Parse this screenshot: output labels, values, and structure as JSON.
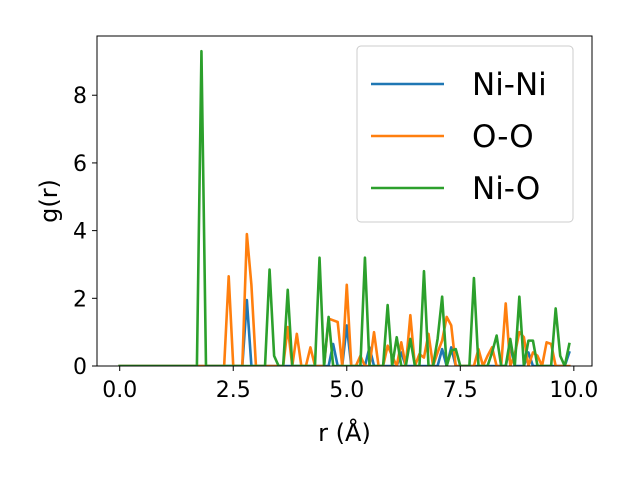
{
  "chart_data": {
    "type": "line",
    "title": "",
    "xlabel": "r (Å)",
    "ylabel": "g(r)",
    "xlim": [
      -0.5,
      10.4
    ],
    "ylim": [
      0,
      9.75
    ],
    "xticks": [
      0.0,
      2.5,
      5.0,
      7.5,
      10.0
    ],
    "xtick_labels": [
      "0.0",
      "2.5",
      "5.0",
      "7.5",
      "10.0"
    ],
    "yticks": [
      0,
      2,
      4,
      6,
      8
    ],
    "ytick_labels": [
      "0",
      "2",
      "4",
      "6",
      "8"
    ],
    "grid": false,
    "legend_position": "top-right",
    "series": [
      {
        "name": "Ni-Ni",
        "color": "#1f77b4",
        "x": [
          0.0,
          2.7,
          2.8,
          2.9,
          4.4,
          4.5,
          4.6,
          4.7,
          4.8,
          4.9,
          5.0,
          5.1,
          5.4,
          5.5,
          5.6,
          6.1,
          6.2,
          6.3,
          7.0,
          7.1,
          7.2,
          7.3,
          7.4,
          7.5,
          8.5,
          8.6,
          8.7,
          8.9,
          9.0,
          9.1,
          9.8,
          9.9
        ],
        "y": [
          0,
          0,
          1.95,
          0,
          0,
          0,
          0,
          0.65,
          0,
          0,
          1.2,
          0,
          0,
          0.55,
          0,
          0,
          0.4,
          0,
          0,
          0.5,
          0,
          0.55,
          0,
          0,
          0,
          0.6,
          0,
          0,
          0.4,
          0,
          0,
          0.4
        ]
      },
      {
        "name": "O-O",
        "color": "#ff7f0e",
        "x": [
          0.0,
          2.3,
          2.4,
          2.5,
          2.7,
          2.8,
          2.9,
          3.0,
          3.5,
          3.6,
          3.7,
          3.8,
          3.9,
          4.0,
          4.1,
          4.2,
          4.3,
          4.4,
          4.5,
          4.6,
          4.7,
          4.8,
          4.9,
          5.0,
          5.1,
          5.2,
          5.3,
          5.4,
          5.5,
          5.6,
          5.7,
          5.8,
          5.9,
          6.0,
          6.1,
          6.2,
          6.3,
          6.4,
          6.5,
          6.6,
          6.7,
          6.8,
          6.9,
          7.0,
          7.1,
          7.2,
          7.3,
          7.4,
          7.5,
          7.6,
          7.7,
          7.8,
          7.9,
          8.0,
          8.1,
          8.2,
          8.3,
          8.4,
          8.5,
          8.6,
          8.7,
          8.8,
          8.9,
          9.0,
          9.1,
          9.2,
          9.3,
          9.4,
          9.5,
          9.6,
          9.7,
          9.8,
          9.9
        ],
        "y": [
          0,
          0,
          2.65,
          0,
          0,
          3.9,
          2.4,
          0,
          0,
          0,
          1.15,
          0,
          0.95,
          0,
          0,
          0.55,
          0,
          0,
          0,
          1.4,
          1.35,
          1.3,
          0,
          2.4,
          0,
          0,
          0.3,
          0,
          0,
          1.0,
          0,
          0,
          0.6,
          0.3,
          0,
          0.7,
          0,
          1.5,
          0,
          0.35,
          0.25,
          0.95,
          0,
          0.4,
          0.75,
          1.45,
          1.2,
          0,
          0,
          0,
          0,
          0,
          0.5,
          0,
          0.3,
          0.55,
          0,
          0,
          1.85,
          0,
          0.35,
          1.0,
          0.85,
          0,
          0.4,
          0.3,
          0,
          0.7,
          0.65,
          0,
          0,
          0,
          0
        ]
      },
      {
        "name": "Ni-O",
        "color": "#2ca02c",
        "x": [
          0.0,
          1.7,
          1.8,
          1.9,
          3.2,
          3.3,
          3.4,
          3.5,
          3.6,
          3.7,
          3.8,
          4.1,
          4.2,
          4.3,
          4.4,
          4.5,
          4.6,
          4.7,
          5.2,
          5.3,
          5.4,
          5.5,
          5.8,
          5.9,
          6.0,
          6.1,
          6.2,
          6.3,
          6.4,
          6.5,
          6.6,
          6.7,
          6.8,
          6.9,
          7.0,
          7.1,
          7.2,
          7.3,
          7.4,
          7.5,
          7.6,
          7.7,
          7.8,
          7.9,
          8.0,
          8.1,
          8.2,
          8.3,
          8.4,
          8.5,
          8.6,
          8.7,
          8.8,
          8.9,
          9.0,
          9.1,
          9.2,
          9.3,
          9.4,
          9.5,
          9.6,
          9.7,
          9.8,
          9.9
        ],
        "y": [
          0,
          0,
          9.3,
          0,
          0,
          2.85,
          0.3,
          0,
          0,
          2.25,
          0,
          0,
          0,
          0,
          3.2,
          0,
          1.45,
          0,
          0,
          0,
          3.2,
          0,
          0,
          1.8,
          0,
          0.85,
          0,
          0,
          0.8,
          0,
          0,
          2.8,
          0,
          0,
          0.8,
          2.05,
          0,
          0.45,
          0.5,
          0,
          0,
          0,
          2.6,
          0,
          0,
          0,
          0.4,
          0.9,
          0,
          0,
          0.8,
          0,
          2.05,
          0,
          0.75,
          0.75,
          0,
          0,
          0,
          0,
          1.7,
          0.3,
          0,
          0.65
        ]
      }
    ]
  }
}
